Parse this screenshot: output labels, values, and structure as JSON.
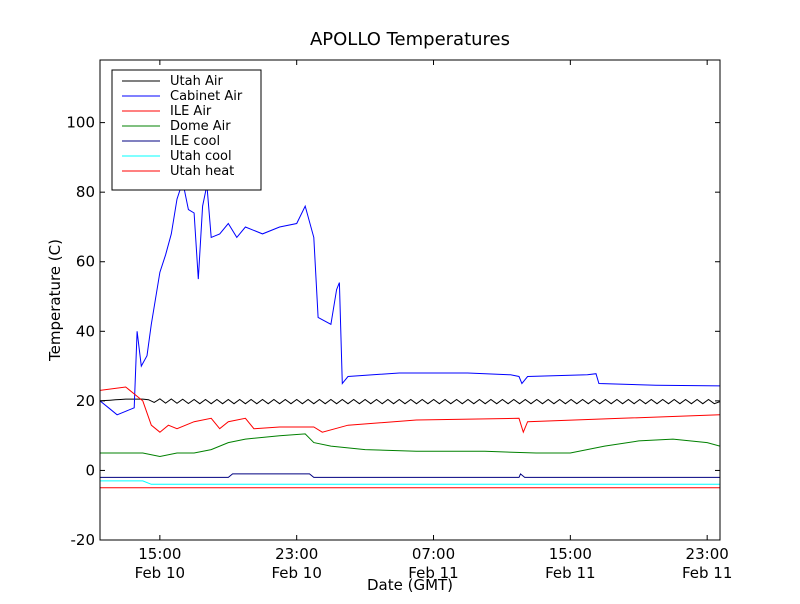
{
  "chart_data": {
    "type": "line",
    "title": "APOLLO Temperatures",
    "xlabel": "Date (GMT)",
    "ylabel": "Temperature (C)",
    "xlim": [
      "Feb 10 11:30",
      "Feb 11 23:45"
    ],
    "ylim": [
      -20,
      118
    ],
    "grid": false,
    "legend_position": "top-left",
    "y_ticks": [
      "-20",
      "0",
      "20",
      "40",
      "60",
      "80",
      "100"
    ],
    "x_ticks": [
      {
        "time": "Feb 10 15:00",
        "label": "15:00",
        "date": "Feb 10"
      },
      {
        "time": "Feb 10 23:00",
        "label": "23:00",
        "date": "Feb 10"
      },
      {
        "time": "Feb 11 07:00",
        "label": "07:00",
        "date": "Feb 11"
      },
      {
        "time": "Feb 11 15:00",
        "label": "15:00",
        "date": "Feb 11"
      },
      {
        "time": "Feb 11 23:00",
        "label": "23:00",
        "date": "Feb 11"
      }
    ],
    "series": [
      {
        "name": "Utah Air",
        "color": "#000000",
        "oscillation": 0.6,
        "points": [
          [
            "Feb 10 11:30",
            20
          ],
          [
            "Feb 10 13:00",
            20.5
          ],
          [
            "Feb 10 14:00",
            20.5
          ],
          [
            "Feb 10 15:00",
            20
          ],
          [
            "Feb 10 17:00",
            19.8
          ],
          [
            "Feb 11 05:00",
            19.8
          ],
          [
            "Feb 11 23:45",
            19.8
          ]
        ]
      },
      {
        "name": "Cabinet Air",
        "color": "#0000ff",
        "points": [
          [
            "Feb 10 11:30",
            20
          ],
          [
            "Feb 10 12:00",
            18
          ],
          [
            "Feb 10 12:30",
            16
          ],
          [
            "Feb 10 13:00",
            17
          ],
          [
            "Feb 10 13:30",
            18
          ],
          [
            "Feb 10 13:40",
            40
          ],
          [
            "Feb 10 13:55",
            30
          ],
          [
            "Feb 10 14:15",
            33
          ],
          [
            "Feb 10 14:30",
            42
          ],
          [
            "Feb 10 15:00",
            57
          ],
          [
            "Feb 10 15:20",
            62
          ],
          [
            "Feb 10 15:40",
            68
          ],
          [
            "Feb 10 16:00",
            78
          ],
          [
            "Feb 10 16:20",
            83
          ],
          [
            "Feb 10 16:40",
            75
          ],
          [
            "Feb 10 17:00",
            74
          ],
          [
            "Feb 10 17:15",
            55
          ],
          [
            "Feb 10 17:30",
            76
          ],
          [
            "Feb 10 17:45",
            82
          ],
          [
            "Feb 10 18:00",
            67
          ],
          [
            "Feb 10 18:30",
            68
          ],
          [
            "Feb 10 19:00",
            71
          ],
          [
            "Feb 10 19:30",
            67
          ],
          [
            "Feb 10 20:00",
            70
          ],
          [
            "Feb 10 21:00",
            68
          ],
          [
            "Feb 10 22:00",
            70
          ],
          [
            "Feb 10 23:00",
            71
          ],
          [
            "Feb 10 23:30",
            76
          ],
          [
            "Feb 11 00:00",
            67
          ],
          [
            "Feb 11 00:15",
            44
          ],
          [
            "Feb 11 01:00",
            42
          ],
          [
            "Feb 11 01:20",
            52
          ],
          [
            "Feb 11 01:30",
            54
          ],
          [
            "Feb 11 01:40",
            25
          ],
          [
            "Feb 11 02:00",
            27
          ],
          [
            "Feb 11 05:00",
            28
          ],
          [
            "Feb 11 09:00",
            28
          ],
          [
            "Feb 11 11:30",
            27.5
          ],
          [
            "Feb 11 12:00",
            27
          ],
          [
            "Feb 11 12:10",
            25
          ],
          [
            "Feb 11 12:30",
            27
          ],
          [
            "Feb 11 16:00",
            27.5
          ],
          [
            "Feb 11 16:30",
            27.8
          ],
          [
            "Feb 11 16:40",
            25
          ],
          [
            "Feb 11 20:00",
            24.5
          ],
          [
            "Feb 11 23:45",
            24.3
          ]
        ]
      },
      {
        "name": "ILE Air",
        "color": "#ff0000",
        "points": [
          [
            "Feb 10 11:30",
            23
          ],
          [
            "Feb 10 13:00",
            24
          ],
          [
            "Feb 10 14:00",
            20
          ],
          [
            "Feb 10 14:30",
            13
          ],
          [
            "Feb 10 15:00",
            11
          ],
          [
            "Feb 10 15:30",
            13
          ],
          [
            "Feb 10 16:00",
            12
          ],
          [
            "Feb 10 17:00",
            14
          ],
          [
            "Feb 10 18:00",
            15
          ],
          [
            "Feb 10 18:30",
            12
          ],
          [
            "Feb 10 19:00",
            14
          ],
          [
            "Feb 10 20:00",
            15
          ],
          [
            "Feb 10 20:30",
            12
          ],
          [
            "Feb 10 22:00",
            12.5
          ],
          [
            "Feb 11 00:00",
            12.5
          ],
          [
            "Feb 11 00:30",
            11
          ],
          [
            "Feb 11 02:00",
            13
          ],
          [
            "Feb 11 06:00",
            14.5
          ],
          [
            "Feb 11 12:00",
            15
          ],
          [
            "Feb 11 12:15",
            11
          ],
          [
            "Feb 11 12:30",
            14
          ],
          [
            "Feb 11 18:00",
            15
          ],
          [
            "Feb 11 23:45",
            16
          ]
        ]
      },
      {
        "name": "Dome Air",
        "color": "#008000",
        "points": [
          [
            "Feb 10 11:30",
            5
          ],
          [
            "Feb 10 12:00",
            5
          ],
          [
            "Feb 10 14:00",
            5
          ],
          [
            "Feb 10 15:00",
            4
          ],
          [
            "Feb 10 16:00",
            5
          ],
          [
            "Feb 10 17:00",
            5
          ],
          [
            "Feb 10 18:00",
            6
          ],
          [
            "Feb 10 19:00",
            8
          ],
          [
            "Feb 10 20:00",
            9
          ],
          [
            "Feb 10 22:00",
            10
          ],
          [
            "Feb 10 23:30",
            10.5
          ],
          [
            "Feb 11 00:00",
            8
          ],
          [
            "Feb 11 01:00",
            7
          ],
          [
            "Feb 11 03:00",
            6
          ],
          [
            "Feb 11 06:00",
            5.5
          ],
          [
            "Feb 11 10:00",
            5.5
          ],
          [
            "Feb 11 13:00",
            5
          ],
          [
            "Feb 11 15:00",
            5
          ],
          [
            "Feb 11 17:00",
            7
          ],
          [
            "Feb 11 19:00",
            8.5
          ],
          [
            "Feb 11 21:00",
            9
          ],
          [
            "Feb 11 23:00",
            8
          ],
          [
            "Feb 11 23:45",
            7
          ]
        ]
      },
      {
        "name": "ILE cool",
        "color": "#000080",
        "points": [
          [
            "Feb 10 11:30",
            -2
          ],
          [
            "Feb 10 19:00",
            -2
          ],
          [
            "Feb 10 19:15",
            -1
          ],
          [
            "Feb 10 23:45",
            -1
          ],
          [
            "Feb 11 00:00",
            -2
          ],
          [
            "Feb 11 12:00",
            -2
          ],
          [
            "Feb 11 12:05",
            -1
          ],
          [
            "Feb 11 12:20",
            -2
          ],
          [
            "Feb 11 23:45",
            -2
          ]
        ]
      },
      {
        "name": "Utah cool",
        "color": "#00ffff",
        "points": [
          [
            "Feb 10 11:30",
            -3
          ],
          [
            "Feb 10 14:00",
            -3
          ],
          [
            "Feb 10 14:30",
            -4
          ],
          [
            "Feb 11 23:45",
            -4
          ]
        ]
      },
      {
        "name": "Utah heat",
        "color": "#ff0000",
        "points": [
          [
            "Feb 10 11:30",
            -5
          ],
          [
            "Feb 11 23:45",
            -5
          ]
        ]
      }
    ]
  }
}
